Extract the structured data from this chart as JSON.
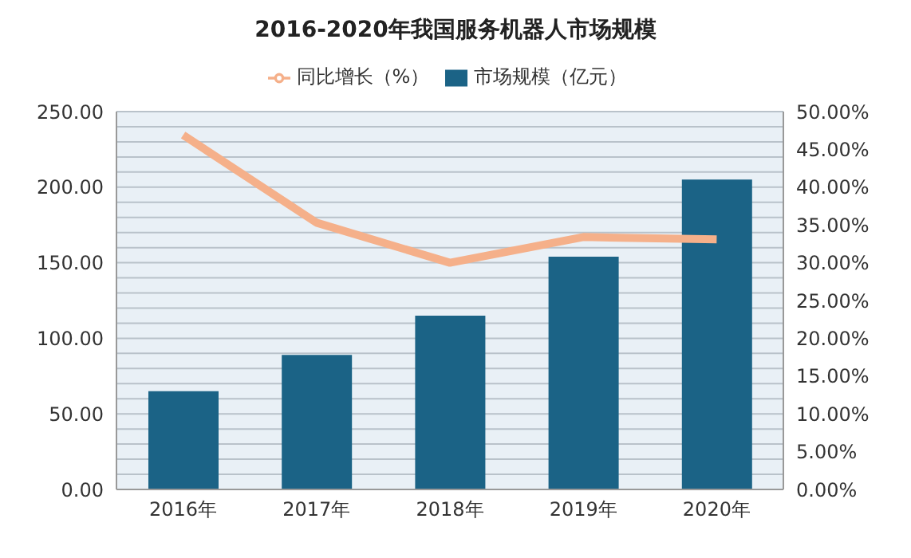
{
  "chart_data": {
    "type": "bar",
    "title": "2016-2020年我国服务机器人市场规模",
    "categories": [
      "2016年",
      "2017年",
      "2018年",
      "2019年",
      "2020年"
    ],
    "series": [
      {
        "name": "市场规模（亿元）",
        "color": "#1b6386",
        "values": [
          65,
          89,
          115,
          154,
          205
        ]
      },
      {
        "name": "同比增长（%）",
        "type": "line",
        "axis": "y2",
        "color": "#f5b08a",
        "values": [
          46.9,
          35.3,
          30.0,
          33.4,
          33.1
        ]
      }
    ],
    "ylim": [
      0,
      250
    ],
    "yticks": [
      {
        "value": 0,
        "label": "0.00"
      },
      {
        "value": 10,
        "label": null
      },
      {
        "value": 20,
        "label": null
      },
      {
        "value": 30,
        "label": null
      },
      {
        "value": 40,
        "label": null
      },
      {
        "value": 50,
        "label": "50.00"
      },
      {
        "value": 60,
        "label": null
      },
      {
        "value": 70,
        "label": null
      },
      {
        "value": 80,
        "label": null
      },
      {
        "value": 90,
        "label": null
      },
      {
        "value": 100,
        "label": "100.00"
      },
      {
        "value": 110,
        "label": null
      },
      {
        "value": 120,
        "label": null
      },
      {
        "value": 130,
        "label": null
      },
      {
        "value": 140,
        "label": null
      },
      {
        "value": 150,
        "label": "150.00"
      },
      {
        "value": 160,
        "label": null
      },
      {
        "value": 170,
        "label": null
      },
      {
        "value": 180,
        "label": null
      },
      {
        "value": 190,
        "label": null
      },
      {
        "value": 200,
        "label": "200.00"
      },
      {
        "value": 210,
        "label": null
      },
      {
        "value": 220,
        "label": null
      },
      {
        "value": 230,
        "label": null
      },
      {
        "value": 240,
        "label": null
      },
      {
        "value": 250,
        "label": "250.00"
      }
    ],
    "y2lim": [
      0,
      50
    ],
    "y2ticks": [
      {
        "value": 0,
        "label": "0.00%"
      },
      {
        "value": 5,
        "label": "5.00%"
      },
      {
        "value": 10,
        "label": "10.00%"
      },
      {
        "value": 15,
        "label": "15.00%"
      },
      {
        "value": 20,
        "label": "20.00%"
      },
      {
        "value": 25,
        "label": "25.00%"
      },
      {
        "value": 30,
        "label": "30.00%"
      },
      {
        "value": 35,
        "label": "35.00%"
      },
      {
        "value": 40,
        "label": "40.00%"
      },
      {
        "value": 45,
        "label": "45.00%"
      },
      {
        "value": 50,
        "label": "50.00%"
      }
    ],
    "grid": "y",
    "legend": "top",
    "marker": "none"
  }
}
